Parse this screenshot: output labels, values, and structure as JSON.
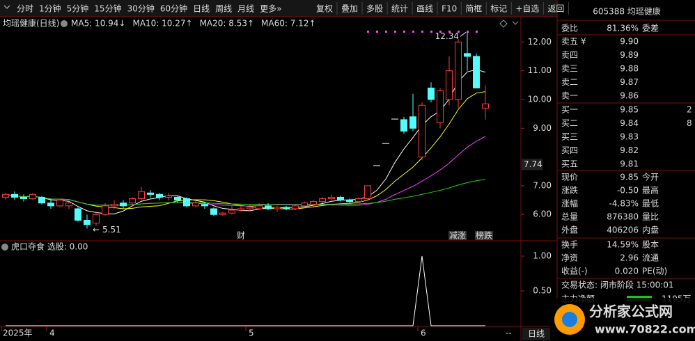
{
  "toolbar": {
    "periods": [
      "分时",
      "1分钟",
      "5分钟",
      "15分钟",
      "30分钟",
      "60分钟",
      "日线",
      "周线",
      "月线",
      "更多»"
    ],
    "tools": [
      "复权",
      "叠加",
      "多股",
      "统计",
      "画线",
      "F10",
      "简框",
      "标记",
      "+自选",
      "返回"
    ]
  },
  "chart_data": {
    "type": "candlestick",
    "title": "均瑶健康(日线)",
    "ma_legend": [
      {
        "label": "MA5: 10.94↓",
        "color": "#ffffff",
        "period": 5
      },
      {
        "label": "MA10: 10.27↑",
        "color": "#ffff00",
        "period": 10
      },
      {
        "label": "MA20: 8.53↑",
        "color": "#ff40ff",
        "period": 20
      },
      {
        "label": "MA60: 7.12↑",
        "color": "#20d020",
        "period": 60
      }
    ],
    "categories": [
      "2025年",
      null,
      null,
      null,
      null,
      "4",
      null,
      null,
      null,
      null,
      null,
      null,
      null,
      null,
      null,
      null,
      null,
      null,
      null,
      null,
      null,
      null,
      null,
      null,
      null,
      null,
      null,
      "5",
      null,
      null,
      null,
      null,
      null,
      null,
      null,
      null,
      null,
      null,
      null,
      null,
      null,
      null,
      null,
      null,
      null,
      null,
      "6",
      null,
      null,
      null,
      null,
      null,
      null,
      null
    ],
    "open": [
      6.6,
      6.7,
      6.6,
      6.55,
      6.6,
      6.4,
      6.3,
      6.3,
      6.2,
      5.8,
      5.7,
      6.0,
      6.3,
      6.4,
      6.4,
      6.55,
      6.75,
      6.7,
      6.6,
      6.6,
      6.55,
      6.3,
      6.35,
      6.2,
      6.0,
      6.05,
      6.15,
      6.2,
      6.2,
      6.3,
      6.2,
      6.25,
      6.2,
      6.3,
      6.35,
      6.45,
      6.55,
      6.6,
      6.5,
      6.45,
      6.55,
      7.7,
      8.47,
      9.32,
      9.3,
      9.4,
      8.0,
      10.4,
      9.2,
      10.0,
      10.0,
      11.6,
      11.5,
      9.7
    ],
    "close": [
      6.7,
      6.6,
      6.55,
      6.7,
      6.4,
      6.3,
      6.5,
      6.4,
      5.8,
      5.65,
      6.0,
      6.3,
      6.35,
      6.3,
      6.55,
      6.8,
      6.7,
      6.6,
      6.65,
      6.5,
      6.3,
      6.4,
      6.3,
      6.0,
      6.05,
      6.15,
      6.2,
      6.25,
      6.3,
      6.2,
      6.25,
      6.2,
      6.3,
      6.4,
      6.45,
      6.55,
      6.6,
      6.5,
      6.45,
      6.55,
      7.0,
      7.7,
      8.47,
      9.32,
      8.9,
      9.0,
      9.8,
      10.0,
      10.3,
      11.0,
      12.0,
      11.5,
      10.4,
      9.85
    ],
    "high": [
      6.75,
      6.8,
      6.7,
      6.75,
      6.65,
      6.5,
      6.55,
      6.45,
      6.25,
      6.0,
      6.1,
      6.4,
      6.5,
      6.5,
      6.6,
      6.95,
      6.85,
      6.75,
      6.75,
      6.65,
      6.6,
      6.5,
      6.45,
      6.25,
      6.1,
      6.3,
      6.3,
      6.35,
      6.4,
      6.4,
      6.3,
      6.3,
      6.35,
      6.45,
      6.5,
      6.6,
      6.7,
      6.65,
      6.55,
      6.6,
      7.0,
      7.7,
      8.47,
      9.32,
      9.4,
      10.2,
      9.9,
      10.6,
      10.4,
      11.5,
      12.1,
      12.34,
      11.6,
      10.5
    ],
    "low": [
      6.5,
      6.5,
      6.45,
      6.5,
      6.35,
      6.2,
      6.25,
      6.2,
      5.75,
      5.51,
      5.6,
      5.95,
      6.2,
      6.2,
      6.3,
      6.5,
      6.6,
      6.5,
      6.5,
      6.4,
      6.25,
      6.25,
      6.2,
      5.95,
      5.95,
      6.0,
      6.1,
      6.1,
      6.15,
      6.15,
      6.1,
      6.15,
      6.15,
      6.25,
      6.3,
      6.4,
      6.5,
      6.45,
      6.4,
      6.4,
      6.5,
      7.7,
      8.47,
      9.32,
      8.8,
      8.9,
      7.9,
      9.9,
      9.0,
      9.8,
      9.7,
      11.0,
      10.4,
      9.3
    ],
    "ylim": [
      5.11,
      12.88
    ],
    "yticks": [
      {
        "value": 12,
        "label": "12.00"
      },
      {
        "value": 11,
        "label": "11.00"
      },
      {
        "value": 10,
        "label": "10.00"
      },
      {
        "value": 9,
        "label": "9.00"
      },
      {
        "value": 7,
        "label": "7.00"
      },
      {
        "value": 6,
        "label": "6.00"
      }
    ],
    "axis_marker": {
      "value": 7.74,
      "label": "7.74"
    },
    "high_label": 12.34,
    "low_label": 5.51,
    "badges": [
      "财",
      "减涨",
      "榜跌"
    ],
    "indicator": {
      "title": "虎口夺食 选股: 0.00",
      "values": [
        0,
        0,
        0,
        0,
        0,
        0,
        0,
        0,
        0,
        0,
        0,
        0,
        0,
        0,
        0,
        0,
        0,
        0,
        0,
        0,
        0,
        0,
        0,
        0,
        0,
        0,
        0,
        0,
        0,
        0,
        0,
        0,
        0,
        0,
        0,
        0,
        0,
        0,
        0,
        0,
        0,
        0,
        0,
        0,
        0,
        0,
        1,
        0,
        0,
        0,
        0,
        0,
        0,
        0
      ],
      "ylim": [
        0,
        1.2
      ],
      "yticks": [
        {
          "value": 1,
          "label": "1.00"
        },
        {
          "value": 0.5,
          "label": "0.50"
        }
      ]
    },
    "corner": "--",
    "period_tab": "日线"
  },
  "quote": {
    "header": "605388 均瑶健康",
    "ratio_label": "委比",
    "ratio": "81.36%",
    "diff_label": "委差",
    "asks": [
      {
        "label": "卖五 ¥",
        "price": "9.90"
      },
      {
        "label": "卖四",
        "price": "9.89"
      },
      {
        "label": "卖三",
        "price": "9.88"
      },
      {
        "label": "卖二",
        "price": "9.87"
      },
      {
        "label": "卖一",
        "price": "9.86"
      }
    ],
    "bids": [
      {
        "label": "买一",
        "price": "9.85",
        "vol": "2"
      },
      {
        "label": "买二",
        "price": "9.84",
        "vol": "8"
      },
      {
        "label": "买三",
        "price": "9.83"
      },
      {
        "label": "买四",
        "price": "9.82"
      },
      {
        "label": "买五",
        "price": "9.81"
      }
    ],
    "stats": [
      {
        "label": "现价",
        "value": "9.85",
        "label2": "今开",
        "color": "#20e020"
      },
      {
        "label": "涨跌",
        "value": "-0.50",
        "label2": "最高",
        "color": "#20e020"
      },
      {
        "label": "涨幅",
        "value": "-4.83%",
        "label2": "最低",
        "color": "#20e020"
      },
      {
        "label": "总量",
        "value": "876380",
        "label2": "量比",
        "color": "#ffd700"
      },
      {
        "label": "外盘",
        "value": "406206",
        "label2": "内盘",
        "color": "#ff4040"
      }
    ],
    "finance": [
      {
        "label": "换手",
        "value": "14.59%",
        "label2": "股本"
      },
      {
        "label": "净资",
        "value": "2.96",
        "label2": "流通"
      },
      {
        "label": "收益(-)",
        "value": "0.020",
        "label2": "PE(动)"
      }
    ],
    "status": "交易状态: 闭市阶段 15:00:01",
    "flow_label": "主力净额",
    "flow_value": "1195万"
  },
  "watermark": {
    "title": "分析家公式网",
    "url": "www.70822.com"
  }
}
